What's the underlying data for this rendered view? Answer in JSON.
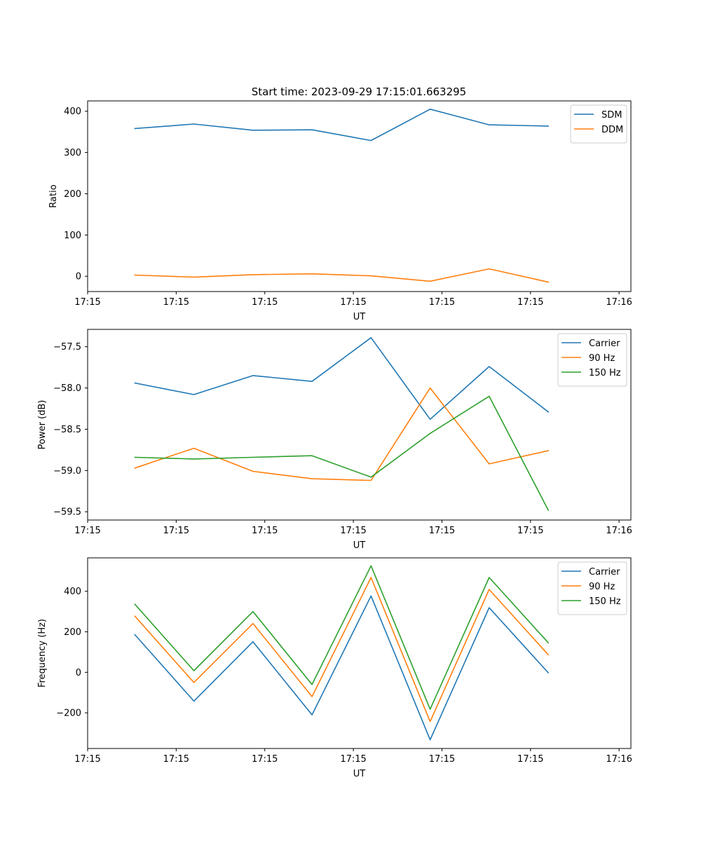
{
  "title": "Start time: 2023-09-29 17:15:01.663295",
  "chart_data": [
    {
      "type": "line",
      "title": "Start time: 2023-09-29 17:15:01.663295",
      "xlabel": "UT",
      "ylabel": "Ratio",
      "x": [
        1,
        2,
        3,
        4,
        5,
        6,
        7,
        8
      ],
      "xlim": [
        0.2,
        9.4
      ],
      "x_ticks": [
        {
          "value": 0.2,
          "label": "17:15"
        },
        {
          "value": 1.7,
          "label": "17:15"
        },
        {
          "value": 3.2,
          "label": "17:15"
        },
        {
          "value": 4.7,
          "label": "17:15"
        },
        {
          "value": 6.2,
          "label": "17:15"
        },
        {
          "value": 7.7,
          "label": "17:15"
        },
        {
          "value": 9.2,
          "label": "17:16"
        }
      ],
      "ylim": [
        -37,
        425
      ],
      "y_ticks": [
        {
          "value": 0,
          "label": "0"
        },
        {
          "value": 100,
          "label": "100"
        },
        {
          "value": 200,
          "label": "200"
        },
        {
          "value": 300,
          "label": "300"
        },
        {
          "value": 400,
          "label": "400"
        }
      ],
      "legend_position": "top-right",
      "series": [
        {
          "name": "SDM",
          "color": "#1f77b4",
          "values": [
            358,
            369,
            354,
            355,
            329,
            405,
            367,
            364
          ]
        },
        {
          "name": "DDM",
          "color": "#ff7f0e",
          "values": [
            3,
            -2,
            4,
            6,
            1,
            -12,
            18,
            -14
          ]
        }
      ]
    },
    {
      "type": "line",
      "xlabel": "UT",
      "ylabel": "Power (dB)",
      "x": [
        1,
        2,
        3,
        4,
        5,
        6,
        7,
        8
      ],
      "xlim": [
        0.2,
        9.4
      ],
      "x_ticks": [
        {
          "value": 0.2,
          "label": "17:15"
        },
        {
          "value": 1.7,
          "label": "17:15"
        },
        {
          "value": 3.2,
          "label": "17:15"
        },
        {
          "value": 4.7,
          "label": "17:15"
        },
        {
          "value": 6.2,
          "label": "17:15"
        },
        {
          "value": 7.7,
          "label": "17:15"
        },
        {
          "value": 9.2,
          "label": "17:16"
        }
      ],
      "ylim": [
        -59.6,
        -57.29
      ],
      "y_ticks": [
        {
          "value": -59.5,
          "label": "−59.5"
        },
        {
          "value": -59.0,
          "label": "−59.0"
        },
        {
          "value": -58.5,
          "label": "−58.5"
        },
        {
          "value": -58.0,
          "label": "−58.0"
        },
        {
          "value": -57.5,
          "label": "−57.5"
        }
      ],
      "legend_position": "top-right",
      "series": [
        {
          "name": "Carrier",
          "color": "#1f77b4",
          "values": [
            -57.94,
            -58.08,
            -57.85,
            -57.92,
            -57.39,
            -58.38,
            -57.74,
            -58.29
          ]
        },
        {
          "name": "90 Hz",
          "color": "#ff7f0e",
          "values": [
            -58.97,
            -58.73,
            -59.01,
            -59.1,
            -59.12,
            -58.0,
            -58.92,
            -58.76
          ]
        },
        {
          "name": "150 Hz",
          "color": "#2ca02c",
          "values": [
            -58.84,
            -58.86,
            -58.84,
            -58.82,
            -59.08,
            -58.55,
            -58.1,
            -59.48
          ]
        }
      ]
    },
    {
      "type": "line",
      "xlabel": "UT",
      "ylabel": "Frequency (Hz)",
      "x": [
        1,
        2,
        3,
        4,
        5,
        6,
        7,
        8
      ],
      "xlim": [
        0.2,
        9.4
      ],
      "x_ticks": [
        {
          "value": 0.2,
          "label": "17:15"
        },
        {
          "value": 1.7,
          "label": "17:15"
        },
        {
          "value": 3.2,
          "label": "17:15"
        },
        {
          "value": 4.7,
          "label": "17:15"
        },
        {
          "value": 6.2,
          "label": "17:15"
        },
        {
          "value": 7.7,
          "label": "17:15"
        },
        {
          "value": 9.2,
          "label": "17:16"
        }
      ],
      "ylim": [
        -376,
        565
      ],
      "y_ticks": [
        {
          "value": -200,
          "label": "−200"
        },
        {
          "value": 0,
          "label": "0"
        },
        {
          "value": 200,
          "label": "200"
        },
        {
          "value": 400,
          "label": "400"
        }
      ],
      "legend_position": "top-right",
      "series": [
        {
          "name": "Carrier",
          "color": "#1f77b4",
          "values": [
            186,
            -142,
            151,
            -210,
            377,
            -333,
            319,
            -2
          ]
        },
        {
          "name": "90 Hz",
          "color": "#ff7f0e",
          "values": [
            277,
            -50,
            241,
            -120,
            468,
            -243,
            409,
            87
          ]
        },
        {
          "name": "150 Hz",
          "color": "#2ca02c",
          "values": [
            336,
            8,
            300,
            -60,
            526,
            -182,
            468,
            146
          ]
        }
      ]
    }
  ]
}
